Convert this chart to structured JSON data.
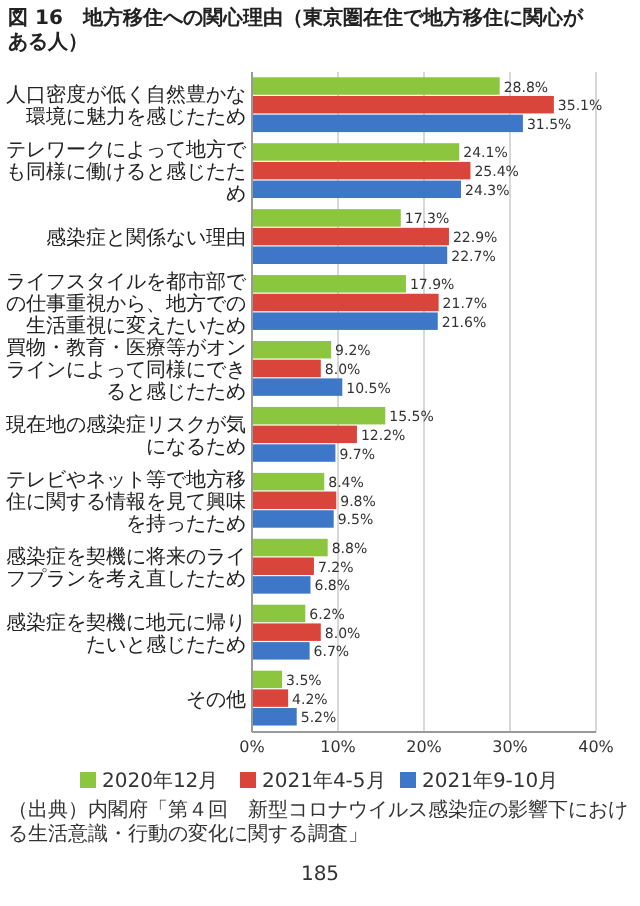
{
  "chart_data": {
    "type": "bar",
    "orientation": "horizontal",
    "title": "図 16　地方移住への関心理由（東京圏在住で地方移住に関心がある人）",
    "categories": [
      "人口密度が低く自然豊かな環境に魅力を感じたため",
      "テレワークによって地方でも同様に働けると感じたため",
      "感染症と関係ない理由",
      "ライフスタイルを都市部での仕事重視から、地方での生活重視に変えたいため",
      "買物・教育・医療等がオンラインによって同様にできると感じたため",
      "現在地の感染症リスクが気になるため",
      "テレビやネット等で地方移住に関する情報を見て興味を持ったため",
      "感染症を契機に将来のライフプランを考え直したため",
      "感染症を契機に地元に帰りたいと感じたため",
      "その他"
    ],
    "series": [
      {
        "name": "2020年12月",
        "color": "#8cc63e",
        "values": [
          28.8,
          24.1,
          17.3,
          17.9,
          9.2,
          15.5,
          8.4,
          8.8,
          6.2,
          3.5
        ],
        "value_labels": [
          "28.8%",
          "24.1%",
          "17.3%",
          "17.9%",
          "9.2%",
          "15.5%",
          "8.4%",
          "8.8%",
          "6.2%",
          "3.5%"
        ]
      },
      {
        "name": "2021年4-5月",
        "color": "#d9443b",
        "values": [
          35.1,
          25.4,
          22.9,
          21.7,
          8.0,
          12.2,
          9.8,
          7.2,
          8.0,
          4.2
        ],
        "value_labels": [
          "35.1%",
          "25.4%",
          "22.9%",
          "21.7%",
          "8.0%",
          "12.2%",
          "9.8%",
          "7.2%",
          "8.0%",
          "4.2%"
        ]
      },
      {
        "name": "2021年9-10月",
        "color": "#3f77c8",
        "values": [
          31.5,
          24.3,
          22.7,
          21.6,
          10.5,
          9.7,
          9.5,
          6.8,
          6.7,
          5.2
        ],
        "value_labels": [
          "31.5%",
          "24.3%",
          "22.7%",
          "21.6%",
          "10.5%",
          "9.7%",
          "9.5%",
          "6.8%",
          "6.7%",
          "5.2%"
        ]
      }
    ],
    "xlim": [
      0,
      40
    ],
    "xticks": [
      {
        "value": 0,
        "label": "0%"
      },
      {
        "value": 10,
        "label": "10%"
      },
      {
        "value": 20,
        "label": "20%"
      },
      {
        "value": 30,
        "label": "30%"
      },
      {
        "value": 40,
        "label": "40%"
      }
    ],
    "grid": "x",
    "legend": "bottom",
    "annotations": [
      "（出典）内閣府「第４回　新型コロナウイルス感染症の影響下における生活意識・行動の変化に関する調査」",
      "185"
    ]
  }
}
